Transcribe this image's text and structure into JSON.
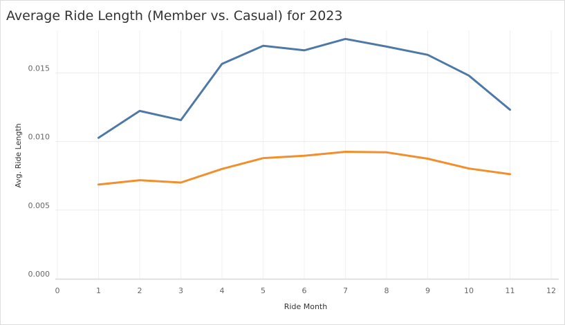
{
  "title": "Average Ride Length (Member vs. Casual) for 2023",
  "chart_data": {
    "type": "line",
    "title": "Average Ride Length (Member vs. Casual) for 2023",
    "xlabel": "Ride Month",
    "ylabel": "Avg. Ride Length",
    "xlim": [
      0,
      12
    ],
    "ylim": [
      0,
      0.018
    ],
    "x_ticks": [
      "0",
      "1",
      "2",
      "3",
      "4",
      "5",
      "6",
      "7",
      "8",
      "9",
      "10",
      "11",
      "12"
    ],
    "y_ticks": [
      "0.000",
      "0.005",
      "0.010",
      "0.015"
    ],
    "y_tick_values": [
      0,
      0.005,
      0.01,
      0.015
    ],
    "grid": true,
    "x": [
      1,
      2,
      3,
      4,
      5,
      6,
      7,
      8,
      9,
      10,
      11
    ],
    "series": [
      {
        "color": "#4e79a7",
        "values": [
          0.01027,
          0.01223,
          0.01156,
          0.01566,
          0.01698,
          0.01665,
          0.01748,
          0.01692,
          0.01632,
          0.01481,
          0.01232
        ]
      },
      {
        "color": "#f28e2b",
        "values": [
          0.00686,
          0.00718,
          0.00701,
          0.008,
          0.00879,
          0.00896,
          0.00925,
          0.00921,
          0.00875,
          0.00803,
          0.00762
        ]
      }
    ]
  }
}
